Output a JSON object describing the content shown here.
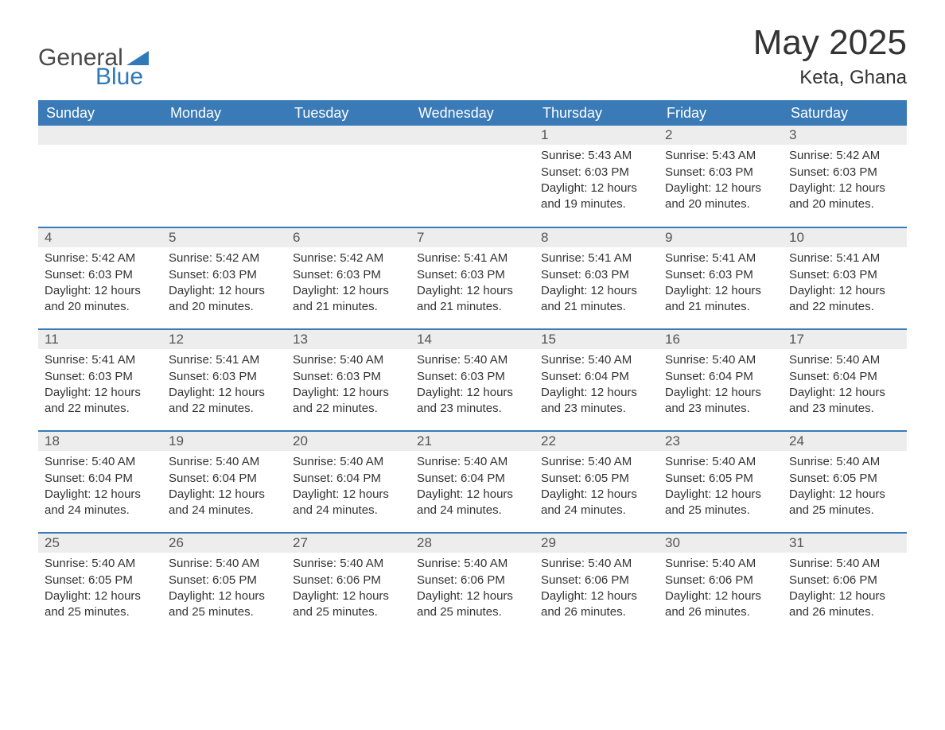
{
  "logo": {
    "word1": "General",
    "word2": "Blue",
    "accent_color": "#2f79b9",
    "text_color": "#4a4a4a"
  },
  "title": "May 2025",
  "location": "Keta, Ghana",
  "colors": {
    "header_bg": "#3a7ab6",
    "header_text": "#ffffff",
    "daynum_bg": "#ededed",
    "row_border": "#3a7ab6",
    "body_text": "#333333",
    "page_bg": "#ffffff"
  },
  "typography": {
    "title_fontsize": 44,
    "location_fontsize": 24,
    "header_fontsize": 18,
    "daynum_fontsize": 17,
    "cell_fontsize": 15,
    "font_family": "Arial"
  },
  "layout": {
    "columns": 7,
    "rows": 5,
    "first_day_column_index": 4
  },
  "weekdays": [
    "Sunday",
    "Monday",
    "Tuesday",
    "Wednesday",
    "Thursday",
    "Friday",
    "Saturday"
  ],
  "weeks": [
    [
      null,
      null,
      null,
      null,
      {
        "day": "1",
        "sunrise": "Sunrise: 5:43 AM",
        "sunset": "Sunset: 6:03 PM",
        "daylight": "Daylight: 12 hours and 19 minutes."
      },
      {
        "day": "2",
        "sunrise": "Sunrise: 5:43 AM",
        "sunset": "Sunset: 6:03 PM",
        "daylight": "Daylight: 12 hours and 20 minutes."
      },
      {
        "day": "3",
        "sunrise": "Sunrise: 5:42 AM",
        "sunset": "Sunset: 6:03 PM",
        "daylight": "Daylight: 12 hours and 20 minutes."
      }
    ],
    [
      {
        "day": "4",
        "sunrise": "Sunrise: 5:42 AM",
        "sunset": "Sunset: 6:03 PM",
        "daylight": "Daylight: 12 hours and 20 minutes."
      },
      {
        "day": "5",
        "sunrise": "Sunrise: 5:42 AM",
        "sunset": "Sunset: 6:03 PM",
        "daylight": "Daylight: 12 hours and 20 minutes."
      },
      {
        "day": "6",
        "sunrise": "Sunrise: 5:42 AM",
        "sunset": "Sunset: 6:03 PM",
        "daylight": "Daylight: 12 hours and 21 minutes."
      },
      {
        "day": "7",
        "sunrise": "Sunrise: 5:41 AM",
        "sunset": "Sunset: 6:03 PM",
        "daylight": "Daylight: 12 hours and 21 minutes."
      },
      {
        "day": "8",
        "sunrise": "Sunrise: 5:41 AM",
        "sunset": "Sunset: 6:03 PM",
        "daylight": "Daylight: 12 hours and 21 minutes."
      },
      {
        "day": "9",
        "sunrise": "Sunrise: 5:41 AM",
        "sunset": "Sunset: 6:03 PM",
        "daylight": "Daylight: 12 hours and 21 minutes."
      },
      {
        "day": "10",
        "sunrise": "Sunrise: 5:41 AM",
        "sunset": "Sunset: 6:03 PM",
        "daylight": "Daylight: 12 hours and 22 minutes."
      }
    ],
    [
      {
        "day": "11",
        "sunrise": "Sunrise: 5:41 AM",
        "sunset": "Sunset: 6:03 PM",
        "daylight": "Daylight: 12 hours and 22 minutes."
      },
      {
        "day": "12",
        "sunrise": "Sunrise: 5:41 AM",
        "sunset": "Sunset: 6:03 PM",
        "daylight": "Daylight: 12 hours and 22 minutes."
      },
      {
        "day": "13",
        "sunrise": "Sunrise: 5:40 AM",
        "sunset": "Sunset: 6:03 PM",
        "daylight": "Daylight: 12 hours and 22 minutes."
      },
      {
        "day": "14",
        "sunrise": "Sunrise: 5:40 AM",
        "sunset": "Sunset: 6:03 PM",
        "daylight": "Daylight: 12 hours and 23 minutes."
      },
      {
        "day": "15",
        "sunrise": "Sunrise: 5:40 AM",
        "sunset": "Sunset: 6:04 PM",
        "daylight": "Daylight: 12 hours and 23 minutes."
      },
      {
        "day": "16",
        "sunrise": "Sunrise: 5:40 AM",
        "sunset": "Sunset: 6:04 PM",
        "daylight": "Daylight: 12 hours and 23 minutes."
      },
      {
        "day": "17",
        "sunrise": "Sunrise: 5:40 AM",
        "sunset": "Sunset: 6:04 PM",
        "daylight": "Daylight: 12 hours and 23 minutes."
      }
    ],
    [
      {
        "day": "18",
        "sunrise": "Sunrise: 5:40 AM",
        "sunset": "Sunset: 6:04 PM",
        "daylight": "Daylight: 12 hours and 24 minutes."
      },
      {
        "day": "19",
        "sunrise": "Sunrise: 5:40 AM",
        "sunset": "Sunset: 6:04 PM",
        "daylight": "Daylight: 12 hours and 24 minutes."
      },
      {
        "day": "20",
        "sunrise": "Sunrise: 5:40 AM",
        "sunset": "Sunset: 6:04 PM",
        "daylight": "Daylight: 12 hours and 24 minutes."
      },
      {
        "day": "21",
        "sunrise": "Sunrise: 5:40 AM",
        "sunset": "Sunset: 6:04 PM",
        "daylight": "Daylight: 12 hours and 24 minutes."
      },
      {
        "day": "22",
        "sunrise": "Sunrise: 5:40 AM",
        "sunset": "Sunset: 6:05 PM",
        "daylight": "Daylight: 12 hours and 24 minutes."
      },
      {
        "day": "23",
        "sunrise": "Sunrise: 5:40 AM",
        "sunset": "Sunset: 6:05 PM",
        "daylight": "Daylight: 12 hours and 25 minutes."
      },
      {
        "day": "24",
        "sunrise": "Sunrise: 5:40 AM",
        "sunset": "Sunset: 6:05 PM",
        "daylight": "Daylight: 12 hours and 25 minutes."
      }
    ],
    [
      {
        "day": "25",
        "sunrise": "Sunrise: 5:40 AM",
        "sunset": "Sunset: 6:05 PM",
        "daylight": "Daylight: 12 hours and 25 minutes."
      },
      {
        "day": "26",
        "sunrise": "Sunrise: 5:40 AM",
        "sunset": "Sunset: 6:05 PM",
        "daylight": "Daylight: 12 hours and 25 minutes."
      },
      {
        "day": "27",
        "sunrise": "Sunrise: 5:40 AM",
        "sunset": "Sunset: 6:06 PM",
        "daylight": "Daylight: 12 hours and 25 minutes."
      },
      {
        "day": "28",
        "sunrise": "Sunrise: 5:40 AM",
        "sunset": "Sunset: 6:06 PM",
        "daylight": "Daylight: 12 hours and 25 minutes."
      },
      {
        "day": "29",
        "sunrise": "Sunrise: 5:40 AM",
        "sunset": "Sunset: 6:06 PM",
        "daylight": "Daylight: 12 hours and 26 minutes."
      },
      {
        "day": "30",
        "sunrise": "Sunrise: 5:40 AM",
        "sunset": "Sunset: 6:06 PM",
        "daylight": "Daylight: 12 hours and 26 minutes."
      },
      {
        "day": "31",
        "sunrise": "Sunrise: 5:40 AM",
        "sunset": "Sunset: 6:06 PM",
        "daylight": "Daylight: 12 hours and 26 minutes."
      }
    ]
  ]
}
